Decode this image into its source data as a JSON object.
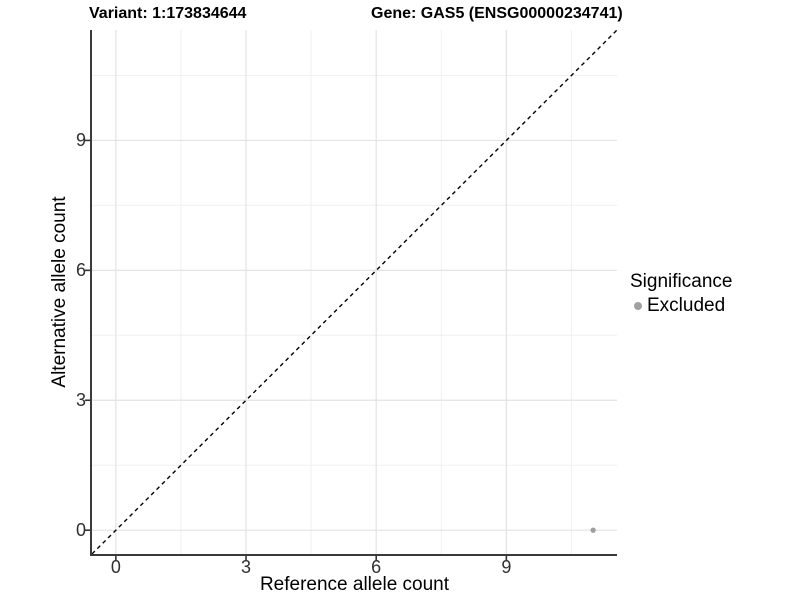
{
  "title": {
    "variant": "Variant: 1:173834644",
    "gene": "Gene: GAS5 (ENSG00000234741)"
  },
  "legend": {
    "title": "Significance",
    "items": [
      {
        "label": "Excluded",
        "marker_color": "#a0a0a0"
      }
    ]
  },
  "chart_data": {
    "type": "scatter",
    "title": "Variant: 1:173834644 / Gene: GAS5 (ENSG00000234741)",
    "xlabel": "Reference allele count",
    "ylabel": "Alternative allele count",
    "xlim": [
      -0.55,
      11.55
    ],
    "ylim": [
      -0.55,
      11.55
    ],
    "x_ticks": [
      0,
      3,
      6,
      9
    ],
    "y_ticks": [
      0,
      3,
      6,
      9
    ],
    "x_minor_ticks": [
      1.5,
      4.5,
      7.5,
      10.5
    ],
    "y_minor_ticks": [
      1.5,
      4.5,
      7.5,
      10.5
    ],
    "grid": "major+minor",
    "legend_position": "right",
    "series": [
      {
        "name": "Excluded",
        "marker": "circle",
        "color": "#a0a0a0",
        "points": [
          {
            "x": 11,
            "y": 0
          }
        ]
      }
    ],
    "reference_line": {
      "shape": "diagonal",
      "slope": 1,
      "intercept": 0,
      "line_style": "dashed",
      "color": "#000000"
    },
    "style": {
      "background": "#ffffff",
      "grid_major_color": "#e3e3e3",
      "grid_minor_color": "#f0f0f0",
      "axis_line_color": "#3a3a3a",
      "tick_mark_color": "#333333",
      "tick_label_color": "#303030",
      "point_color": "#a0a0a0"
    }
  }
}
